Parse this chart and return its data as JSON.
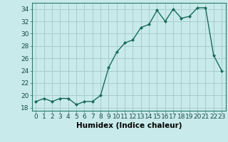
{
  "x": [
    0,
    1,
    2,
    3,
    4,
    5,
    6,
    7,
    8,
    9,
    10,
    11,
    12,
    13,
    14,
    15,
    16,
    17,
    18,
    19,
    20,
    21,
    22,
    23
  ],
  "y": [
    19,
    19.5,
    19,
    19.5,
    19.5,
    18.5,
    19,
    19,
    20,
    24.5,
    27,
    28.5,
    29,
    31,
    31.5,
    33.8,
    32,
    34,
    32.5,
    32.8,
    34.2,
    34.2,
    26.5,
    24
  ],
  "xlabel": "Humidex (Indice chaleur)",
  "xlim": [
    -0.5,
    23.5
  ],
  "ylim": [
    17.5,
    35.0
  ],
  "yticks": [
    18,
    20,
    22,
    24,
    26,
    28,
    30,
    32,
    34
  ],
  "xticks": [
    0,
    1,
    2,
    3,
    4,
    5,
    6,
    7,
    8,
    9,
    10,
    11,
    12,
    13,
    14,
    15,
    16,
    17,
    18,
    19,
    20,
    21,
    22,
    23
  ],
  "line_color": "#1a6b5a",
  "marker": "D",
  "marker_size": 2.0,
  "bg_color": "#c8eaea",
  "grid_color": "#a8cccc",
  "xlabel_fontsize": 7.5,
  "tick_fontsize": 6.5
}
